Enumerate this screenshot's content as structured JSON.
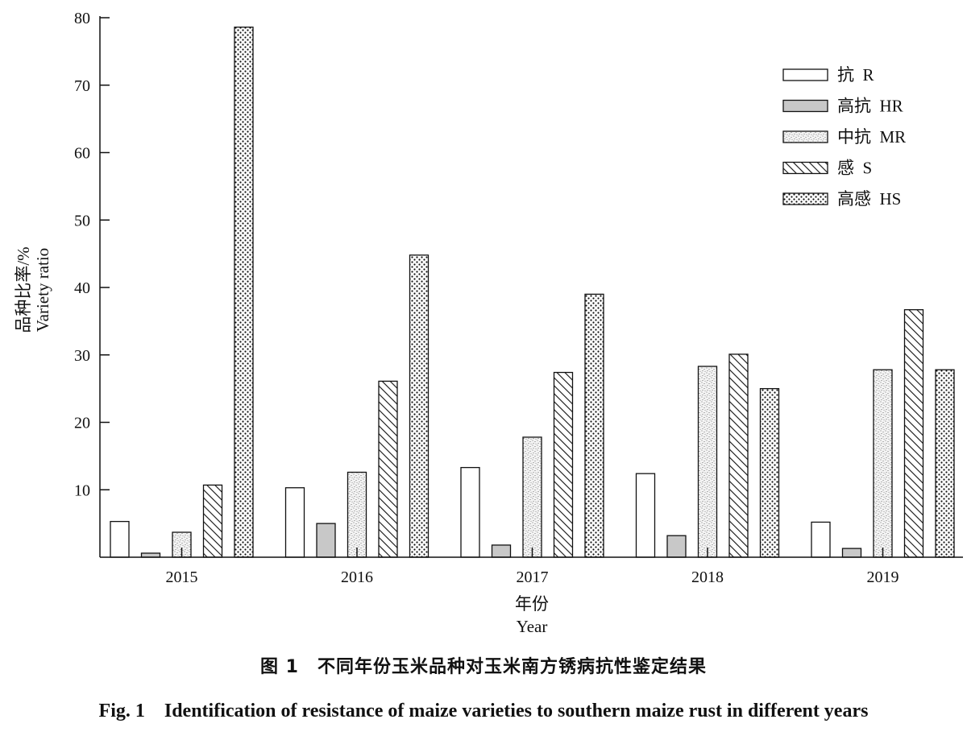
{
  "chart_data": {
    "type": "bar",
    "categories": [
      "2015",
      "2016",
      "2017",
      "2018",
      "2019"
    ],
    "series": [
      {
        "name": "抗  R",
        "pattern": "none",
        "values": [
          5.3,
          10.3,
          13.3,
          12.4,
          5.2
        ]
      },
      {
        "name": "高抗  HR",
        "pattern": "gray",
        "values": [
          0.6,
          5.0,
          1.8,
          3.2,
          1.3
        ]
      },
      {
        "name": "中抗  MR",
        "pattern": "stipple",
        "values": [
          3.7,
          12.6,
          17.8,
          28.3,
          27.8
        ]
      },
      {
        "name": "感  S",
        "pattern": "diagonal-hatch",
        "values": [
          10.7,
          26.1,
          27.4,
          30.1,
          36.7
        ]
      },
      {
        "name": "高感  HS",
        "pattern": "dots",
        "values": [
          78.6,
          44.8,
          39.0,
          25.0,
          27.8
        ]
      }
    ],
    "xlabel_cn": "年份",
    "xlabel_en": "Year",
    "ylabel_cn": "品种比率/%",
    "ylabel_en": "Variety ratio",
    "ylim": [
      0,
      80
    ],
    "yticks": [
      10,
      20,
      30,
      40,
      50,
      60,
      70,
      80
    ],
    "legend_position": "top-right",
    "grid": false
  },
  "caption": {
    "cn": "图 1　不同年份玉米品种对玉米南方锈病抗性鉴定结果",
    "en": "Fig. 1　Identification of resistance of maize varieties to southern maize rust in different years"
  },
  "colors": {
    "axis": "#111111",
    "bar_outline": "#111111",
    "gray_fill": "#c8c8c8",
    "white_fill": "#ffffff"
  }
}
